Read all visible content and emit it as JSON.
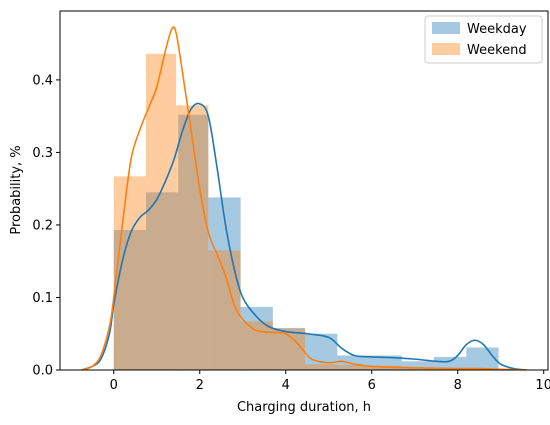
{
  "chart_data": {
    "type": "bar",
    "title": "",
    "xlabel": "Charging duration, h",
    "ylabel": "Probability, %",
    "xlim": [
      -1.25,
      10.1
    ],
    "ylim": [
      0,
      0.495
    ],
    "xticks": [
      0,
      2,
      4,
      6,
      8,
      10
    ],
    "yticks": [
      0.0,
      0.1,
      0.2,
      0.3,
      0.4
    ],
    "xtick_labels": [
      "0",
      "2",
      "4",
      "6",
      "8",
      "10"
    ],
    "ytick_labels": [
      "0.0",
      "0.1",
      "0.2",
      "0.3",
      "0.4"
    ],
    "grid": false,
    "legend_position": "top-right",
    "series": [
      {
        "name": "Weekday",
        "color": "#1f77b4",
        "bins": [
          [
            0.0,
            0.75,
            0.193
          ],
          [
            0.75,
            1.5,
            0.245
          ],
          [
            1.5,
            2.2,
            0.352
          ],
          [
            2.2,
            2.95,
            0.238
          ],
          [
            2.95,
            3.7,
            0.087
          ],
          [
            3.7,
            4.45,
            0.058
          ],
          [
            4.45,
            5.2,
            0.05
          ],
          [
            5.2,
            5.95,
            0.02
          ],
          [
            5.95,
            6.7,
            0.02
          ],
          [
            6.7,
            7.45,
            0.012
          ],
          [
            7.45,
            8.2,
            0.018
          ],
          [
            8.2,
            8.95,
            0.031
          ]
        ],
        "kde": [
          [
            -0.75,
            0.0
          ],
          [
            -0.5,
            0.005
          ],
          [
            -0.3,
            0.015
          ],
          [
            -0.1,
            0.05
          ],
          [
            0.0,
            0.09
          ],
          [
            0.2,
            0.15
          ],
          [
            0.4,
            0.19
          ],
          [
            0.6,
            0.21
          ],
          [
            0.8,
            0.22
          ],
          [
            1.0,
            0.235
          ],
          [
            1.2,
            0.26
          ],
          [
            1.4,
            0.29
          ],
          [
            1.6,
            0.33
          ],
          [
            1.8,
            0.36
          ],
          [
            2.0,
            0.367
          ],
          [
            2.2,
            0.35
          ],
          [
            2.4,
            0.28
          ],
          [
            2.6,
            0.2
          ],
          [
            2.8,
            0.14
          ],
          [
            3.0,
            0.1
          ],
          [
            3.3,
            0.075
          ],
          [
            3.6,
            0.06
          ],
          [
            4.0,
            0.053
          ],
          [
            4.5,
            0.05
          ],
          [
            5.0,
            0.045
          ],
          [
            5.3,
            0.03
          ],
          [
            5.6,
            0.02
          ],
          [
            6.0,
            0.018
          ],
          [
            6.5,
            0.017
          ],
          [
            7.0,
            0.015
          ],
          [
            7.5,
            0.012
          ],
          [
            7.8,
            0.012
          ],
          [
            8.0,
            0.02
          ],
          [
            8.2,
            0.035
          ],
          [
            8.4,
            0.041
          ],
          [
            8.6,
            0.035
          ],
          [
            8.8,
            0.02
          ],
          [
            9.0,
            0.008
          ],
          [
            9.3,
            0.002
          ],
          [
            9.6,
            0.0
          ]
        ]
      },
      {
        "name": "Weekend",
        "color": "#ff7f0e",
        "bins": [
          [
            0.0,
            0.75,
            0.267
          ],
          [
            0.75,
            1.45,
            0.436
          ],
          [
            1.45,
            2.2,
            0.365
          ],
          [
            2.2,
            2.95,
            0.165
          ],
          [
            2.95,
            3.7,
            0.067
          ],
          [
            3.7,
            4.45,
            0.057
          ],
          [
            4.45,
            5.2,
            0.008
          ],
          [
            5.2,
            5.95,
            0.007
          ],
          [
            5.95,
            6.7,
            0.006
          ],
          [
            6.7,
            7.45,
            0.004
          ],
          [
            7.45,
            8.2,
            0.003
          ],
          [
            8.2,
            8.95,
            0.002
          ]
        ],
        "kde": [
          [
            -0.75,
            0.0
          ],
          [
            -0.5,
            0.005
          ],
          [
            -0.3,
            0.02
          ],
          [
            -0.1,
            0.06
          ],
          [
            0.0,
            0.1
          ],
          [
            0.2,
            0.2
          ],
          [
            0.4,
            0.29
          ],
          [
            0.6,
            0.33
          ],
          [
            0.8,
            0.36
          ],
          [
            1.0,
            0.39
          ],
          [
            1.2,
            0.44
          ],
          [
            1.35,
            0.47
          ],
          [
            1.45,
            0.465
          ],
          [
            1.6,
            0.41
          ],
          [
            1.8,
            0.33
          ],
          [
            2.0,
            0.25
          ],
          [
            2.2,
            0.19
          ],
          [
            2.4,
            0.16
          ],
          [
            2.6,
            0.13
          ],
          [
            2.8,
            0.09
          ],
          [
            3.0,
            0.07
          ],
          [
            3.3,
            0.055
          ],
          [
            3.6,
            0.052
          ],
          [
            4.0,
            0.05
          ],
          [
            4.3,
            0.035
          ],
          [
            4.6,
            0.015
          ],
          [
            5.0,
            0.01
          ],
          [
            5.3,
            0.012
          ],
          [
            5.6,
            0.008
          ],
          [
            6.0,
            0.005
          ],
          [
            7.0,
            0.003
          ],
          [
            8.0,
            0.002
          ],
          [
            8.5,
            0.002
          ],
          [
            9.0,
            0.001
          ],
          [
            9.6,
            0.0
          ]
        ]
      }
    ]
  }
}
